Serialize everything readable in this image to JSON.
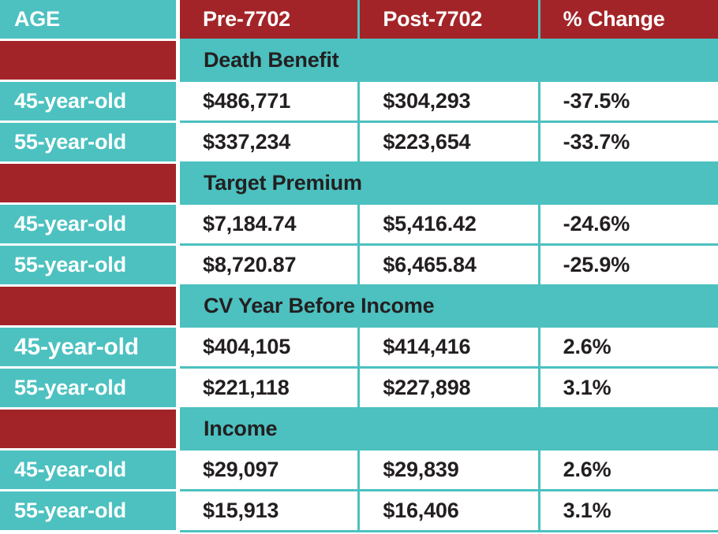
{
  "table": {
    "columns": [
      "AGE",
      "Pre-7702",
      "Post-7702",
      "% Change"
    ],
    "sections": [
      {
        "title": "Death Benefit",
        "rows": [
          {
            "age": "45-year-old",
            "pre": "$486,771",
            "post": "$304,293",
            "change": "-37.5%"
          },
          {
            "age": "55-year-old",
            "pre": "$337,234",
            "post": "$223,654",
            "change": "-33.7%"
          }
        ]
      },
      {
        "title": "Target Premium",
        "rows": [
          {
            "age": "45-year-old",
            "pre": "$7,184.74",
            "post": "$5,416.42",
            "change": "-24.6%"
          },
          {
            "age": "55-year-old",
            "pre": "$8,720.87",
            "post": "$6,465.84",
            "change": "-25.9%"
          }
        ]
      },
      {
        "title": "CV Year Before Income",
        "rows": [
          {
            "age": "45-year-old",
            "pre": "$404,105",
            "post": "$414,416",
            "change": "2.6%"
          },
          {
            "age": "55-year-old",
            "pre": "$221,118",
            "post": "$227,898",
            "change": "3.1%"
          }
        ]
      },
      {
        "title": "Income",
        "rows": [
          {
            "age": "45-year-old",
            "pre": "$29,097",
            "post": "$29,839",
            "change": "2.6%"
          },
          {
            "age": "55-year-old",
            "pre": "$15,913",
            "post": "$16,406",
            "change": "3.1%"
          }
        ]
      }
    ],
    "colors": {
      "teal": "#4CC1C0",
      "red": "#A32428",
      "text_dark": "#231F20",
      "text_light": "#FFFFFF"
    }
  }
}
